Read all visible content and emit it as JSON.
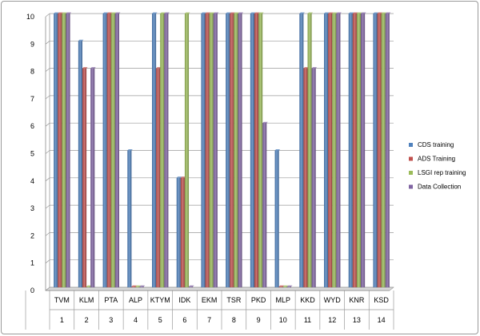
{
  "chart_data": {
    "type": "bar",
    "title": "",
    "xlabel": "",
    "ylabel": "",
    "ylim": [
      0,
      10
    ],
    "yticks": [
      "0",
      "1",
      "2",
      "3",
      "4",
      "5",
      "6",
      "7",
      "8",
      "9",
      "10"
    ],
    "grid": true,
    "legend_position": "right",
    "categories": [
      "TVM",
      "KLM",
      "PTA",
      "ALP",
      "KTYM",
      "IDK",
      "EKM",
      "TSR",
      "PKD",
      "MLP",
      "KKD",
      "WYD",
      "KNR",
      "KSD"
    ],
    "category_numbers": [
      "1",
      "2",
      "3",
      "4",
      "5",
      "6",
      "7",
      "8",
      "9",
      "10",
      "11",
      "12",
      "13",
      "14"
    ],
    "series": [
      {
        "name": "CDS training",
        "color": "#4f81bd",
        "values": [
          10,
          9,
          10,
          5,
          10,
          4,
          10,
          10,
          10,
          5,
          10,
          10,
          10,
          10
        ]
      },
      {
        "name": "ADS Training",
        "color": "#c0504d",
        "values": [
          10,
          8,
          10,
          0,
          8,
          4,
          10,
          10,
          10,
          0,
          8,
          10,
          10,
          10
        ]
      },
      {
        "name": "LSGI rep training",
        "color": "#9bbb59",
        "values": [
          10,
          0,
          10,
          0,
          10,
          10,
          10,
          10,
          10,
          0,
          10,
          10,
          10,
          10
        ]
      },
      {
        "name": "Data Collection",
        "color": "#8064a2",
        "values": [
          10,
          8,
          10,
          0,
          10,
          0,
          10,
          10,
          6,
          0,
          8,
          10,
          10,
          10
        ]
      }
    ]
  }
}
